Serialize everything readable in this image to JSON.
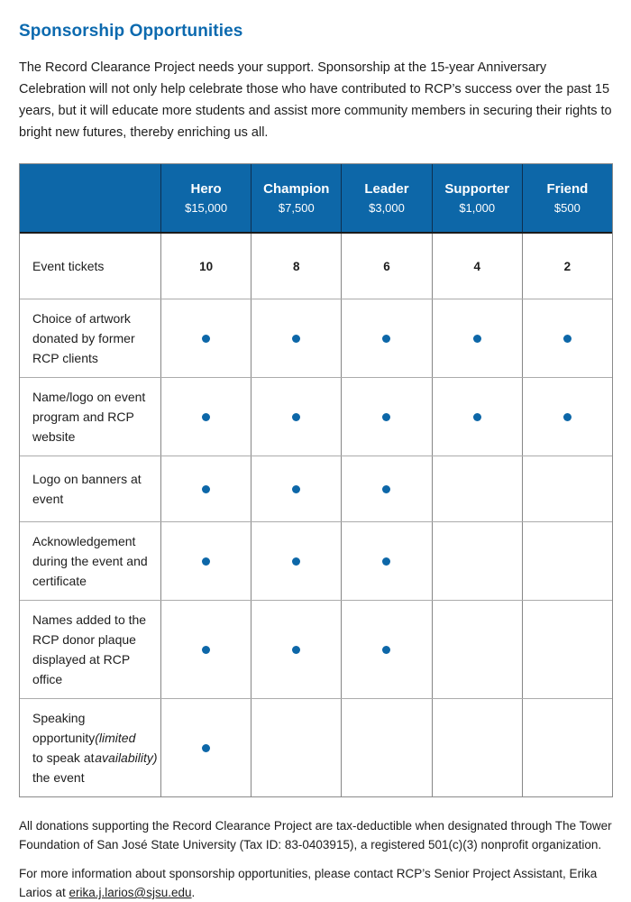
{
  "page": {
    "title": "Sponsorship Opportunities",
    "intro": "The Record Clearance Project needs your support. Sponsorship at the 15-year Anniversary Celebration will not only help celebrate those who have contributed to RCP’s success over the past 15 years, but it will educate more students and assist more community members in securing their rights to bright new futures, thereby enriching us all."
  },
  "colors": {
    "header_blue": "#0d67a8",
    "title_blue": "#0c6aaf",
    "dot_blue": "#0d67a8",
    "header_text": "#ffffff",
    "body_text": "#1d1d1d",
    "grid_line": "#868686"
  },
  "table": {
    "tiers": [
      {
        "name": "Hero",
        "amount": "$15,000"
      },
      {
        "name": "Champion",
        "amount": "$7,500"
      },
      {
        "name": "Leader",
        "amount": "$3,000"
      },
      {
        "name": "Supporter",
        "amount": "$1,000"
      },
      {
        "name": "Friend",
        "amount": "$500"
      }
    ],
    "rows": [
      {
        "label": "Event tickets",
        "type": "numbers",
        "values": [
          "10",
          "8",
          "6",
          "4",
          "2"
        ]
      },
      {
        "label": "Choice of artwork donated by former RCP clients",
        "type": "dots",
        "values": [
          true,
          true,
          true,
          true,
          true
        ]
      },
      {
        "label": "Name/logo on event program and RCP website",
        "type": "dots",
        "values": [
          true,
          true,
          true,
          true,
          true
        ]
      },
      {
        "label": "Logo on banners at event",
        "type": "dots",
        "values": [
          true,
          true,
          true,
          false,
          false
        ]
      },
      {
        "label": "Acknowledgement during the event and certificate",
        "type": "dots",
        "values": [
          true,
          true,
          true,
          false,
          false
        ]
      },
      {
        "label": "Names added to the RCP donor plaque displayed at RCP office",
        "type": "dots",
        "values": [
          true,
          true,
          true,
          false,
          false
        ]
      },
      {
        "label": "Speaking opportunity to speak at the event",
        "note": "(limited availability)",
        "type": "dots",
        "values": [
          true,
          false,
          false,
          false,
          false
        ]
      }
    ]
  },
  "footer": {
    "tax_note": "All donations supporting the Record Clearance Project are tax-deductible when designated through The Tower Foundation of San José State University (Tax ID: 83-0403915), a registered 501(c)(3) nonprofit organization.",
    "contact_prefix": "For more information about sponsorship opportunities, please contact RCP’s Senior Project Assistant, Erika Larios at ",
    "contact_email": "erika.j.larios@sjsu.edu",
    "contact_suffix": "."
  }
}
